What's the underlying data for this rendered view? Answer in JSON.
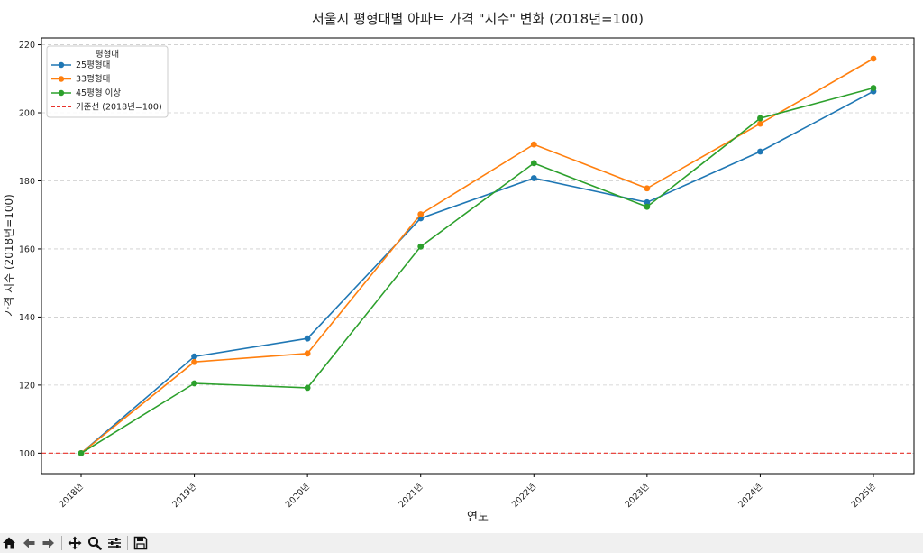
{
  "chart_data": {
    "type": "line",
    "title": "서울시 평형대별 아파트 가격 \"지수\" 변화 (2018년=100)",
    "xlabel": "연도",
    "ylabel": "가격 지수 (2018년=100)",
    "categories": [
      "2018년",
      "2019년",
      "2020년",
      "2021년",
      "2022년",
      "2023년",
      "2024년",
      "2025년"
    ],
    "ylim": [
      94,
      222
    ],
    "yticks": [
      100,
      120,
      140,
      160,
      180,
      200,
      220
    ],
    "grid": "horizontal-dashed",
    "legend": {
      "title": "평형대",
      "placement": "top-left"
    },
    "series": [
      {
        "name": "25평형대",
        "color": "#1f77b4",
        "values": [
          100,
          128.4,
          133.7,
          169.0,
          180.8,
          173.7,
          188.6,
          206.3
        ]
      },
      {
        "name": "33평형대",
        "color": "#ff7f0e",
        "values": [
          100,
          126.8,
          129.3,
          170.2,
          190.7,
          177.8,
          196.8,
          215.9
        ]
      },
      {
        "name": "45평형 이상",
        "color": "#2ca02c",
        "values": [
          100,
          120.5,
          119.2,
          160.7,
          185.2,
          172.4,
          198.4,
          207.3
        ]
      }
    ],
    "reference_line": {
      "name": "기준선 (2018년=100)",
      "value": 100,
      "color": "#e8322b",
      "style": "dashed"
    }
  },
  "toolbar": {
    "icons": [
      "home-icon",
      "back-icon",
      "forward-icon",
      "pan-icon",
      "zoom-icon",
      "configure-icon",
      "save-icon"
    ]
  }
}
